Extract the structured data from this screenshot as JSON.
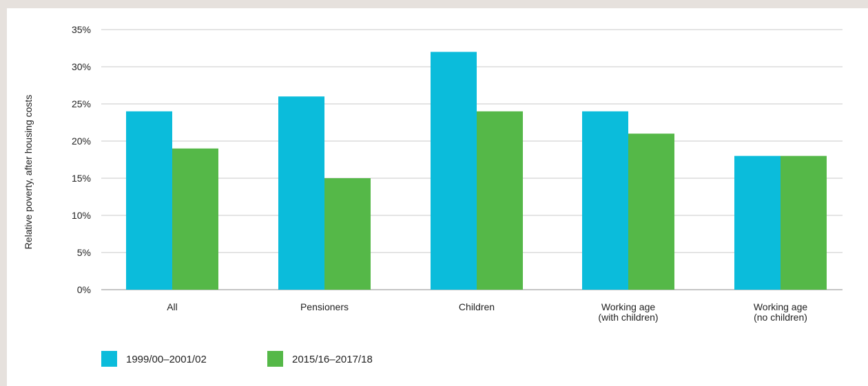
{
  "chart_data": {
    "type": "bar",
    "title": "",
    "xlabel": "",
    "ylabel": "Relative poverty, after housing costs",
    "ylim": [
      0,
      35
    ],
    "yticks": [
      "0%",
      "5%",
      "10%",
      "15%",
      "20%",
      "25%",
      "30%",
      "35%"
    ],
    "ytick_values": [
      0,
      5,
      10,
      15,
      20,
      25,
      30,
      35
    ],
    "grid": true,
    "legend_position": "bottom-left",
    "categories": [
      [
        "All"
      ],
      [
        "Pensioners"
      ],
      [
        "Children"
      ],
      [
        "Working age",
        "(with children)"
      ],
      [
        "Working age",
        "(no children)"
      ]
    ],
    "series": [
      {
        "name": "1999/00–2001/02",
        "color": "#0bbcdb",
        "values": [
          24,
          26,
          32,
          24,
          18
        ]
      },
      {
        "name": "2015/16–2017/18",
        "color": "#55b848",
        "values": [
          19,
          15,
          24,
          21,
          18
        ]
      }
    ]
  }
}
